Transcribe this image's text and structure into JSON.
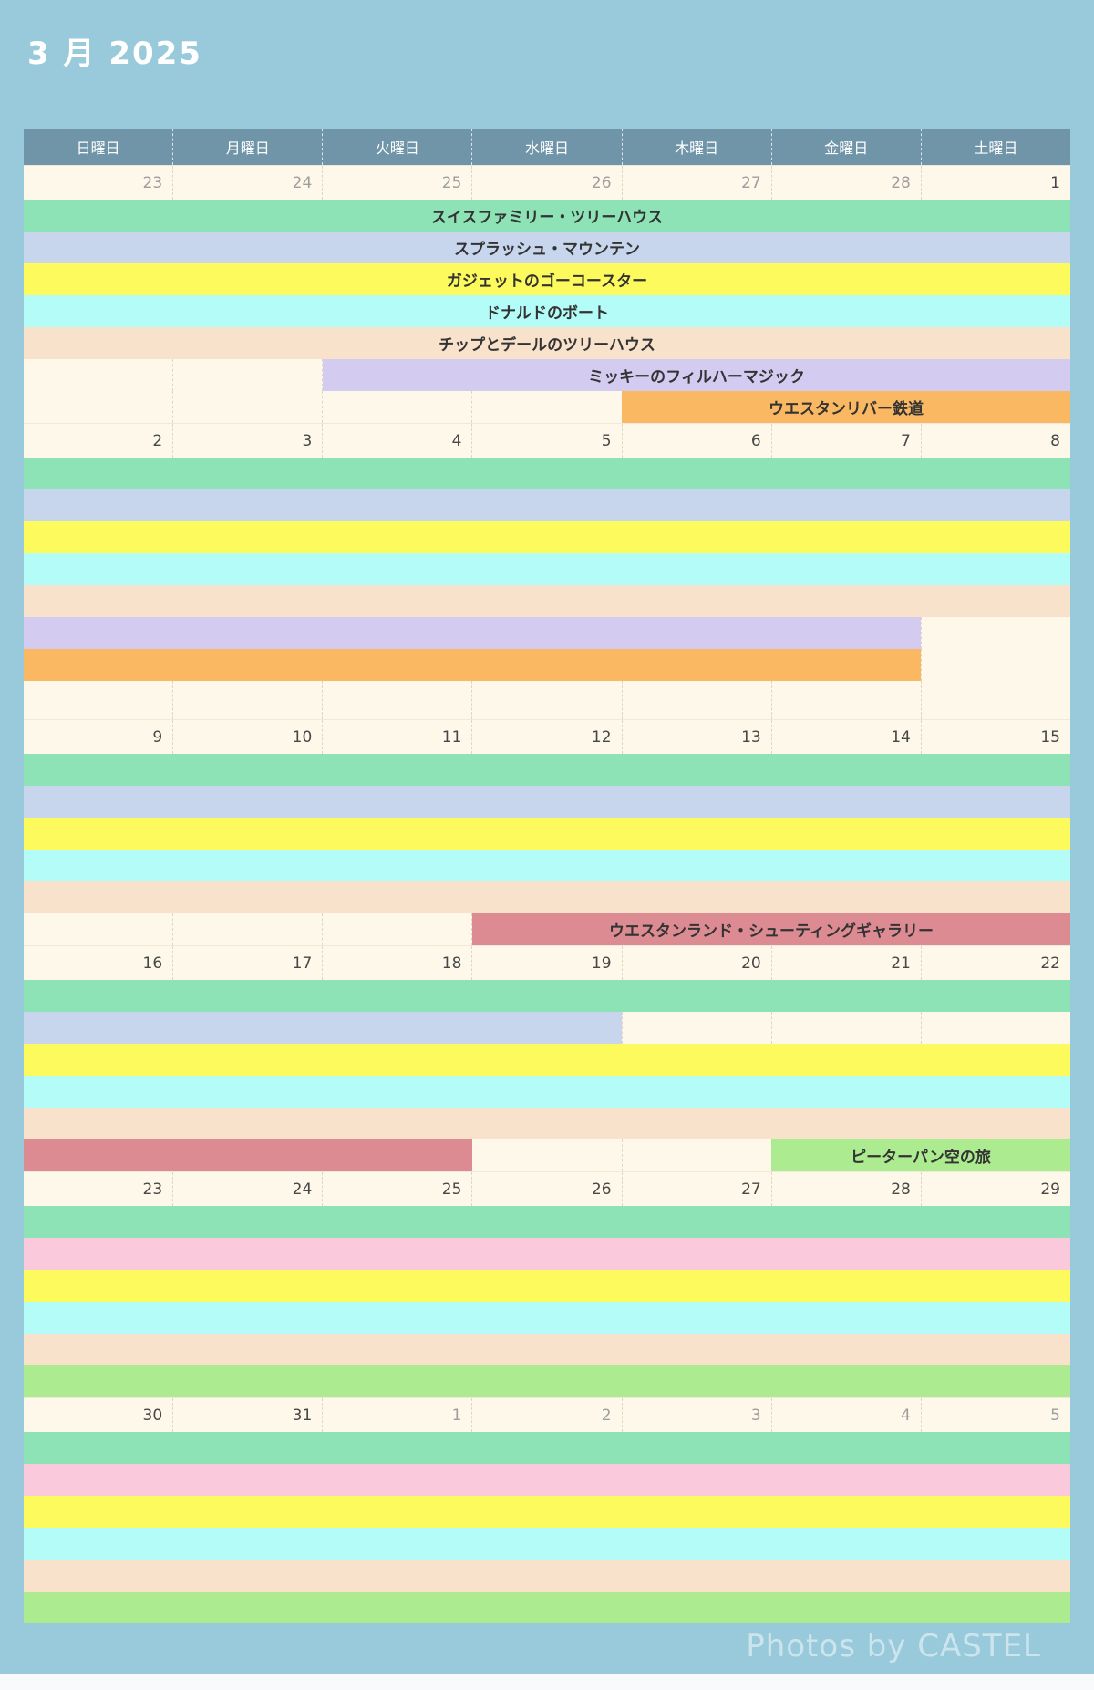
{
  "page": {
    "title": "3 月 2025",
    "watermark": "Photos by CASTEL"
  },
  "colors": {
    "page_bg": "#99cadb",
    "header_bg": "#7095a9",
    "cell_bg": "#fdf8e9",
    "bar_text": "#333333",
    "date_text": "#474747",
    "date_muted": "#9e9e9e",
    "green": "#8de2b6",
    "periwinkle": "#c8d6ed",
    "yellow": "#fcfa5c",
    "cyan": "#b3fcf7",
    "peach": "#f9e2cb",
    "lavender": "#d3ccf0",
    "orange": "#fab863",
    "rose": "#dd8b93",
    "pink": "#fbc9dc",
    "light_green": "#aceb90"
  },
  "day_headers": [
    "日曜日",
    "月曜日",
    "火曜日",
    "水曜日",
    "木曜日",
    "金曜日",
    "土曜日"
  ],
  "weeks": [
    {
      "dates": [
        {
          "label": "23",
          "muted": true
        },
        {
          "label": "24",
          "muted": true
        },
        {
          "label": "25",
          "muted": true
        },
        {
          "label": "26",
          "muted": true
        },
        {
          "label": "27",
          "muted": true
        },
        {
          "label": "28",
          "muted": true
        },
        {
          "label": "1",
          "muted": false
        }
      ],
      "rows": [
        {
          "bars": [
            {
              "color": "green",
              "start": 0,
              "end": 7,
              "label": "スイスファミリー・ツリーハウス"
            }
          ]
        },
        {
          "bars": [
            {
              "color": "periwinkle",
              "start": 0,
              "end": 7,
              "label": "スプラッシュ・マウンテン"
            }
          ]
        },
        {
          "bars": [
            {
              "color": "yellow",
              "start": 0,
              "end": 7,
              "label": "ガジェットのゴーコースター"
            }
          ]
        },
        {
          "bars": [
            {
              "color": "cyan",
              "start": 0,
              "end": 7,
              "label": "ドナルドのボート"
            }
          ]
        },
        {
          "bars": [
            {
              "color": "peach",
              "start": 0,
              "end": 7,
              "label": "チップとデールのツリーハウス"
            }
          ]
        },
        {
          "bars": [
            {
              "color": "lavender",
              "start": 2,
              "end": 7,
              "label": "ミッキーのフィルハーマジック"
            }
          ]
        },
        {
          "bars": [
            {
              "color": "orange",
              "start": 4,
              "end": 7,
              "label": "ウエスタンリバー鉄道"
            }
          ]
        }
      ]
    },
    {
      "dates": [
        {
          "label": "2",
          "muted": false
        },
        {
          "label": "3",
          "muted": false
        },
        {
          "label": "4",
          "muted": false
        },
        {
          "label": "5",
          "muted": false
        },
        {
          "label": "6",
          "muted": false
        },
        {
          "label": "7",
          "muted": false
        },
        {
          "label": "8",
          "muted": false
        }
      ],
      "rows": [
        {
          "bars": [
            {
              "color": "green",
              "start": 0,
              "end": 7,
              "label": ""
            }
          ]
        },
        {
          "bars": [
            {
              "color": "periwinkle",
              "start": 0,
              "end": 7,
              "label": ""
            }
          ]
        },
        {
          "bars": [
            {
              "color": "yellow",
              "start": 0,
              "end": 7,
              "label": ""
            }
          ]
        },
        {
          "bars": [
            {
              "color": "cyan",
              "start": 0,
              "end": 7,
              "label": ""
            }
          ]
        },
        {
          "bars": [
            {
              "color": "peach",
              "start": 0,
              "end": 7,
              "label": ""
            }
          ]
        },
        {
          "bars": [
            {
              "color": "lavender",
              "start": 0,
              "end": 6,
              "label": ""
            }
          ]
        },
        {
          "bars": [
            {
              "color": "orange",
              "start": 0,
              "end": 6,
              "label": ""
            }
          ]
        },
        {
          "tall": true,
          "bars": []
        }
      ]
    },
    {
      "dates": [
        {
          "label": "9",
          "muted": false
        },
        {
          "label": "10",
          "muted": false
        },
        {
          "label": "11",
          "muted": false
        },
        {
          "label": "12",
          "muted": false
        },
        {
          "label": "13",
          "muted": false
        },
        {
          "label": "14",
          "muted": false
        },
        {
          "label": "15",
          "muted": false
        }
      ],
      "rows": [
        {
          "bars": [
            {
              "color": "green",
              "start": 0,
              "end": 7,
              "label": ""
            }
          ]
        },
        {
          "bars": [
            {
              "color": "periwinkle",
              "start": 0,
              "end": 7,
              "label": ""
            }
          ]
        },
        {
          "bars": [
            {
              "color": "yellow",
              "start": 0,
              "end": 7,
              "label": ""
            }
          ]
        },
        {
          "bars": [
            {
              "color": "cyan",
              "start": 0,
              "end": 7,
              "label": ""
            }
          ]
        },
        {
          "bars": [
            {
              "color": "peach",
              "start": 0,
              "end": 7,
              "label": ""
            }
          ]
        },
        {
          "bars": [
            {
              "color": "rose",
              "start": 3,
              "end": 7,
              "label": "ウエスタンランド・シューティングギャラリー"
            }
          ]
        }
      ]
    },
    {
      "dates": [
        {
          "label": "16",
          "muted": false
        },
        {
          "label": "17",
          "muted": false
        },
        {
          "label": "18",
          "muted": false
        },
        {
          "label": "19",
          "muted": false
        },
        {
          "label": "20",
          "muted": false
        },
        {
          "label": "21",
          "muted": false
        },
        {
          "label": "22",
          "muted": false
        }
      ],
      "rows": [
        {
          "bars": [
            {
              "color": "green",
              "start": 0,
              "end": 7,
              "label": ""
            }
          ]
        },
        {
          "bars": [
            {
              "color": "periwinkle",
              "start": 0,
              "end": 4,
              "label": ""
            }
          ]
        },
        {
          "bars": [
            {
              "color": "yellow",
              "start": 0,
              "end": 7,
              "label": ""
            }
          ]
        },
        {
          "bars": [
            {
              "color": "cyan",
              "start": 0,
              "end": 7,
              "label": ""
            }
          ]
        },
        {
          "bars": [
            {
              "color": "peach",
              "start": 0,
              "end": 7,
              "label": ""
            }
          ]
        },
        {
          "bars": [
            {
              "color": "rose",
              "start": 0,
              "end": 3,
              "label": ""
            },
            {
              "color": "light_green",
              "start": 5,
              "end": 7,
              "label": "ピーターパン空の旅"
            }
          ]
        }
      ]
    },
    {
      "dates": [
        {
          "label": "23",
          "muted": false
        },
        {
          "label": "24",
          "muted": false
        },
        {
          "label": "25",
          "muted": false
        },
        {
          "label": "26",
          "muted": false
        },
        {
          "label": "27",
          "muted": false
        },
        {
          "label": "28",
          "muted": false
        },
        {
          "label": "29",
          "muted": false
        }
      ],
      "rows": [
        {
          "bars": [
            {
              "color": "green",
              "start": 0,
              "end": 7,
              "label": ""
            }
          ]
        },
        {
          "bars": [
            {
              "color": "pink",
              "start": 0,
              "end": 7,
              "label": ""
            }
          ]
        },
        {
          "bars": [
            {
              "color": "yellow",
              "start": 0,
              "end": 7,
              "label": ""
            }
          ]
        },
        {
          "bars": [
            {
              "color": "cyan",
              "start": 0,
              "end": 7,
              "label": ""
            }
          ]
        },
        {
          "bars": [
            {
              "color": "peach",
              "start": 0,
              "end": 7,
              "label": ""
            }
          ]
        },
        {
          "bars": [
            {
              "color": "light_green",
              "start": 0,
              "end": 7,
              "label": ""
            }
          ]
        }
      ]
    },
    {
      "dates": [
        {
          "label": "30",
          "muted": false
        },
        {
          "label": "31",
          "muted": false
        },
        {
          "label": "1",
          "muted": true
        },
        {
          "label": "2",
          "muted": true
        },
        {
          "label": "3",
          "muted": true
        },
        {
          "label": "4",
          "muted": true
        },
        {
          "label": "5",
          "muted": true
        }
      ],
      "rows": [
        {
          "bars": [
            {
              "color": "green",
              "start": 0,
              "end": 7,
              "label": ""
            }
          ]
        },
        {
          "bars": [
            {
              "color": "pink",
              "start": 0,
              "end": 7,
              "label": ""
            }
          ]
        },
        {
          "bars": [
            {
              "color": "yellow",
              "start": 0,
              "end": 7,
              "label": ""
            }
          ]
        },
        {
          "bars": [
            {
              "color": "cyan",
              "start": 0,
              "end": 7,
              "label": ""
            }
          ]
        },
        {
          "bars": [
            {
              "color": "peach",
              "start": 0,
              "end": 7,
              "label": ""
            }
          ]
        },
        {
          "bars": [
            {
              "color": "light_green",
              "start": 0,
              "end": 7,
              "label": ""
            }
          ]
        }
      ]
    }
  ]
}
